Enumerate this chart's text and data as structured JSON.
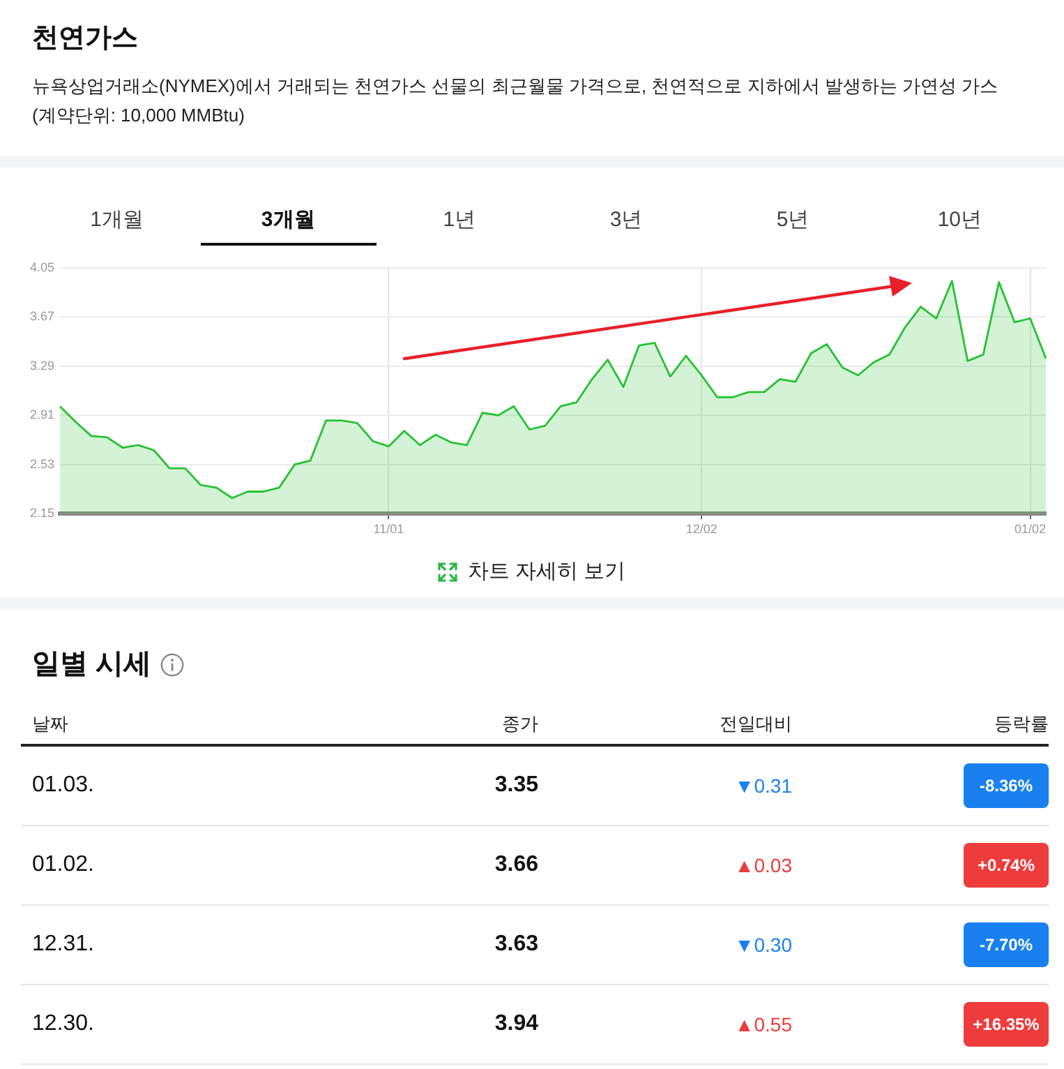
{
  "chart_data": [
    {
      "type": "area",
      "title": "천연가스",
      "subtitle": "뉴욕상업거래소(NYMEX)에서 거래되는 천연가스 선물의 최근월물 가격으로, 천연적으로 지하에서 발생하는 가연성 가스 (계약단위: 10,000 MMBtu)",
      "annotations": [
        "1개월",
        "3개월",
        "1년",
        "3년",
        "5년",
        "10년",
        "차트 자세히 보기"
      ],
      "categories": [
        null,
        null,
        null,
        null,
        null,
        null,
        null,
        null,
        null,
        null,
        null,
        null,
        null,
        null,
        null,
        null,
        null,
        null,
        null,
        null,
        null,
        "11/01",
        null,
        null,
        null,
        null,
        null,
        null,
        null,
        null,
        null,
        null,
        null,
        null,
        null,
        null,
        null,
        null,
        null,
        null,
        null,
        "12/02",
        null,
        null,
        null,
        null,
        null,
        null,
        null,
        null,
        null,
        null,
        null,
        null,
        null,
        null,
        null,
        null,
        null,
        null,
        null,
        null,
        "01/02",
        null
      ],
      "values": [
        2.98,
        2.86,
        2.75,
        2.74,
        2.66,
        2.68,
        2.64,
        2.5,
        2.5,
        2.37,
        2.35,
        2.27,
        2.32,
        2.32,
        2.35,
        2.53,
        2.56,
        2.87,
        2.87,
        2.85,
        2.71,
        2.67,
        2.79,
        2.68,
        2.76,
        2.7,
        2.68,
        2.93,
        2.91,
        2.98,
        2.8,
        2.83,
        2.98,
        3.01,
        3.19,
        3.34,
        3.13,
        3.45,
        3.47,
        3.21,
        3.37,
        3.22,
        3.05,
        3.05,
        3.09,
        3.09,
        3.19,
        3.17,
        3.39,
        3.46,
        3.28,
        3.22,
        3.32,
        3.38,
        3.59,
        3.75,
        3.66,
        3.95,
        3.33,
        3.38,
        3.94,
        3.63,
        3.66,
        3.35
      ],
      "color": "#26c232",
      "ylim": [
        2.15,
        4.05
      ],
      "yticks": [
        2.15,
        2.53,
        2.91,
        3.29,
        3.67,
        4.05
      ],
      "grid": true,
      "marker": "none"
    },
    {
      "type": "other",
      "title": "일별 시세",
      "annotations": [
        "날짜",
        "종가",
        "전일대비",
        "등락률",
        "01.03.",
        "3.35",
        "▼0.31",
        "-8.36%",
        "01.02.",
        "3.66",
        "▲0.03",
        "+0.74%",
        "12.31.",
        "3.63",
        "▼0.30",
        "-7.70%",
        "12.30.",
        "3.94",
        "▲0.55",
        "+16.35%"
      ],
      "colors": [
        "#1a80f0",
        "#ee3b3b",
        "#1a80f0",
        "#ee3b3b"
      ]
    }
  ]
}
